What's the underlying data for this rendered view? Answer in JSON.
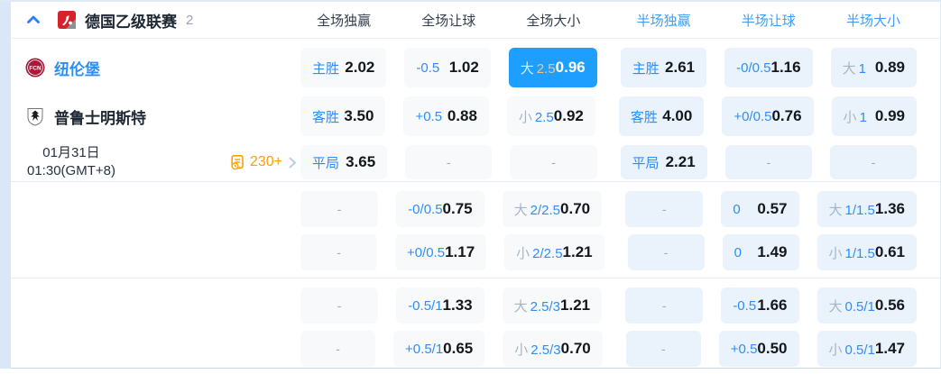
{
  "colors": {
    "accent_blue": "#1e9fff",
    "label_blue": "#2e8ef7",
    "half_header_blue": "#3d9df5",
    "highlight_gold": "#e9c685",
    "badge_orange": "#ff9d0a",
    "page_strip_blue": "#d9e7f6"
  },
  "league_header": {
    "collapse_icon": "chevron-up",
    "league_name": "德国乙级联赛",
    "match_count": "2",
    "columns": [
      {
        "label": "全场独赢",
        "half": false
      },
      {
        "label": "全场让球",
        "half": false
      },
      {
        "label": "全场大小",
        "half": false
      },
      {
        "label": "半场独赢",
        "half": true
      },
      {
        "label": "半场让球",
        "half": true
      },
      {
        "label": "半场大小",
        "half": true
      }
    ]
  },
  "match": {
    "home_team": "纽伦堡",
    "away_team": "普鲁士明斯特",
    "date": "01月31日",
    "time": "01:30(GMT+8)",
    "more_markets": "230+",
    "dash_symbol": "-"
  },
  "odds_sections": [
    {
      "rows": [
        {
          "cells": [
            {
              "t": "主胜",
              "o": "2.02"
            },
            {
              "t": "-0.5",
              "o": "1.02"
            },
            {
              "p": "大",
              "t": "2.5",
              "o": "0.96",
              "hl": true
            },
            {
              "t": "主胜",
              "o": "2.61"
            },
            {
              "t": "-0/0.5",
              "o": "1.16"
            },
            {
              "p": "大",
              "t": "1",
              "o": "0.89"
            }
          ]
        },
        {
          "cells": [
            {
              "t": "客胜",
              "o": "3.50"
            },
            {
              "t": "+0.5",
              "o": "0.88"
            },
            {
              "p": "小",
              "t": "2.5",
              "o": "0.92"
            },
            {
              "t": "客胜",
              "o": "4.00"
            },
            {
              "t": "+0/0.5",
              "o": "0.76"
            },
            {
              "p": "小",
              "t": "1",
              "o": "0.99"
            }
          ]
        },
        {
          "cells": [
            {
              "t": "平局",
              "o": "3.65"
            },
            {
              "dash": true
            },
            {
              "dash": true
            },
            {
              "t": "平局",
              "o": "2.21"
            },
            {
              "dash": true
            },
            {
              "dash": true
            }
          ]
        }
      ]
    },
    {
      "rows": [
        {
          "cells": [
            {
              "dash": true
            },
            {
              "t": "-0/0.5",
              "o": "0.75"
            },
            {
              "p": "大",
              "t": "2/2.5",
              "o": "0.70"
            },
            {
              "dash": true
            },
            {
              "t": "0",
              "o": "0.57"
            },
            {
              "p": "大",
              "t": "1/1.5",
              "o": "1.36"
            }
          ]
        },
        {
          "cells": [
            {
              "dash": true
            },
            {
              "t": "+0/0.5",
              "o": "1.17"
            },
            {
              "p": "小",
              "t": "2/2.5",
              "o": "1.21"
            },
            {
              "dash": true
            },
            {
              "t": "0",
              "o": "1.49"
            },
            {
              "p": "小",
              "t": "1/1.5",
              "o": "0.61"
            }
          ]
        }
      ]
    },
    {
      "rows": [
        {
          "cells": [
            {
              "dash": true
            },
            {
              "t": "-0.5/1",
              "o": "1.33"
            },
            {
              "p": "大",
              "t": "2.5/3",
              "o": "1.21"
            },
            {
              "dash": true
            },
            {
              "t": "-0.5",
              "o": "1.66"
            },
            {
              "p": "大",
              "t": "0.5/1",
              "o": "0.56"
            }
          ]
        },
        {
          "cells": [
            {
              "dash": true
            },
            {
              "t": "+0.5/1",
              "o": "0.65"
            },
            {
              "p": "小",
              "t": "2.5/3",
              "o": "0.70"
            },
            {
              "dash": true
            },
            {
              "t": "+0.5",
              "o": "0.50"
            },
            {
              "p": "小",
              "t": "0.5/1",
              "o": "1.47"
            }
          ]
        }
      ]
    }
  ]
}
